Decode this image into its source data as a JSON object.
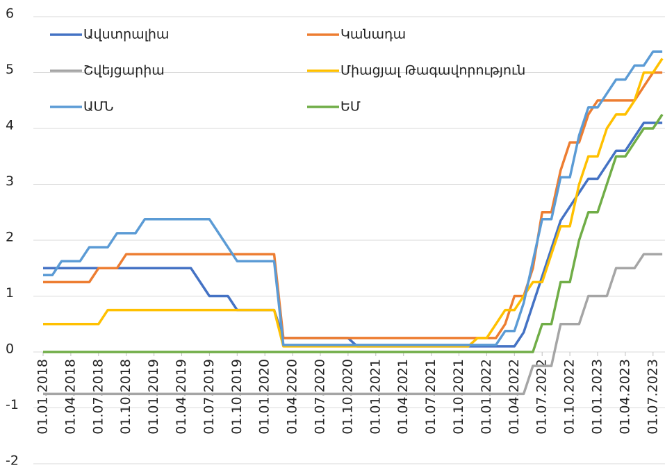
{
  "chart_data": {
    "type": "line",
    "categories": [
      "01.01.2018",
      null,
      null,
      "01.04.2018",
      null,
      null,
      "01.07.2018",
      null,
      null,
      "01.10.2018",
      null,
      null,
      "01.01.2019",
      null,
      null,
      "01.04.2019",
      null,
      null,
      "01.07.2019",
      null,
      null,
      "01.10.2019",
      null,
      null,
      "01.01.2020",
      null,
      null,
      "01.04.2020",
      null,
      null,
      "01.07.2020",
      null,
      null,
      "01.10.2020",
      null,
      null,
      "01.01.2021",
      null,
      null,
      "01.04.2021",
      null,
      null,
      "01.07.2021",
      null,
      null,
      "01.10.2021",
      null,
      null,
      "01.01.2022",
      null,
      null,
      "01.04.2022",
      null,
      null,
      "01.07.2022",
      null,
      null,
      "01.10.2022",
      null,
      null,
      "01.01.2023",
      null,
      null,
      "01.04.2023",
      null,
      null,
      "01.07.2023",
      null
    ],
    "series": [
      {
        "name": "Ավստրալիա",
        "color": "#4472c4",
        "values": [
          1.5,
          1.5,
          1.5,
          1.5,
          1.5,
          1.5,
          1.5,
          1.5,
          1.5,
          1.5,
          1.5,
          1.5,
          1.5,
          1.5,
          1.5,
          1.5,
          1.5,
          1.25,
          1,
          1,
          1,
          0.75,
          0.75,
          0.75,
          0.75,
          0.75,
          0.25,
          0.25,
          0.25,
          0.25,
          0.25,
          0.25,
          0.25,
          0.25,
          0.1,
          0.1,
          0.1,
          0.1,
          0.1,
          0.1,
          0.1,
          0.1,
          0.1,
          0.1,
          0.1,
          0.1,
          0.1,
          0.1,
          0.1,
          0.1,
          0.1,
          0.1,
          0.35,
          0.85,
          1.35,
          1.85,
          2.35,
          2.6,
          2.85,
          3.1,
          3.1,
          3.35,
          3.6,
          3.6,
          3.85,
          4.1,
          4.1,
          4.1
        ]
      },
      {
        "name": "Կանադա",
        "color": "#ed7d31",
        "values": [
          1.25,
          1.25,
          1.25,
          1.25,
          1.25,
          1.25,
          1.5,
          1.5,
          1.5,
          1.75,
          1.75,
          1.75,
          1.75,
          1.75,
          1.75,
          1.75,
          1.75,
          1.75,
          1.75,
          1.75,
          1.75,
          1.75,
          1.75,
          1.75,
          1.75,
          1.75,
          0.25,
          0.25,
          0.25,
          0.25,
          0.25,
          0.25,
          0.25,
          0.25,
          0.25,
          0.25,
          0.25,
          0.25,
          0.25,
          0.25,
          0.25,
          0.25,
          0.25,
          0.25,
          0.25,
          0.25,
          0.25,
          0.25,
          0.25,
          0.25,
          0.5,
          1,
          1,
          1.5,
          2.5,
          2.5,
          3.25,
          3.75,
          3.75,
          4.25,
          4.5,
          4.5,
          4.5,
          4.5,
          4.5,
          4.75,
          5,
          5
        ]
      },
      {
        "name": "Շվեյցարիա",
        "color": "#a5a5a5",
        "values": [
          -0.75,
          -0.75,
          -0.75,
          -0.75,
          -0.75,
          -0.75,
          -0.75,
          -0.75,
          -0.75,
          -0.75,
          -0.75,
          -0.75,
          -0.75,
          -0.75,
          -0.75,
          -0.75,
          -0.75,
          -0.75,
          -0.75,
          -0.75,
          -0.75,
          -0.75,
          -0.75,
          -0.75,
          -0.75,
          -0.75,
          -0.75,
          -0.75,
          -0.75,
          -0.75,
          -0.75,
          -0.75,
          -0.75,
          -0.75,
          -0.75,
          -0.75,
          -0.75,
          -0.75,
          -0.75,
          -0.75,
          -0.75,
          -0.75,
          -0.75,
          -0.75,
          -0.75,
          -0.75,
          -0.75,
          -0.75,
          -0.75,
          -0.75,
          -0.75,
          -0.75,
          -0.75,
          -0.25,
          -0.25,
          -0.25,
          0.5,
          0.5,
          0.5,
          1,
          1,
          1,
          1.5,
          1.5,
          1.5,
          1.75,
          1.75,
          1.75
        ]
      },
      {
        "name": "Միացյալ Թագավորություն",
        "color": "#ffc000",
        "values": [
          0.5,
          0.5,
          0.5,
          0.5,
          0.5,
          0.5,
          0.5,
          0.75,
          0.75,
          0.75,
          0.75,
          0.75,
          0.75,
          0.75,
          0.75,
          0.75,
          0.75,
          0.75,
          0.75,
          0.75,
          0.75,
          0.75,
          0.75,
          0.75,
          0.75,
          0.75,
          0.1,
          0.1,
          0.1,
          0.1,
          0.1,
          0.1,
          0.1,
          0.1,
          0.1,
          0.1,
          0.1,
          0.1,
          0.1,
          0.1,
          0.1,
          0.1,
          0.1,
          0.1,
          0.1,
          0.1,
          0.1,
          0.25,
          0.25,
          0.5,
          0.75,
          0.75,
          1,
          1.25,
          1.25,
          1.75,
          2.25,
          2.25,
          3,
          3.5,
          3.5,
          4,
          4.25,
          4.25,
          4.5,
          5,
          5,
          5.25
        ]
      },
      {
        "name": "ԱՄՆ",
        "color": "#5b9bd5",
        "values": [
          1.375,
          1.375,
          1.625,
          1.625,
          1.625,
          1.875,
          1.875,
          1.875,
          2.125,
          2.125,
          2.125,
          2.375,
          2.375,
          2.375,
          2.375,
          2.375,
          2.375,
          2.375,
          2.375,
          2.125,
          1.875,
          1.625,
          1.625,
          1.625,
          1.625,
          1.625,
          0.125,
          0.125,
          0.125,
          0.125,
          0.125,
          0.125,
          0.125,
          0.125,
          0.125,
          0.125,
          0.125,
          0.125,
          0.125,
          0.125,
          0.125,
          0.125,
          0.125,
          0.125,
          0.125,
          0.125,
          0.125,
          0.125,
          0.125,
          0.125,
          0.375,
          0.375,
          0.875,
          1.625,
          2.375,
          2.375,
          3.125,
          3.125,
          3.875,
          4.375,
          4.375,
          4.625,
          4.875,
          4.875,
          5.125,
          5.125,
          5.375,
          5.375
        ]
      },
      {
        "name": "ԵՄ",
        "color": "#70ad47",
        "values": [
          0,
          0,
          0,
          0,
          0,
          0,
          0,
          0,
          0,
          0,
          0,
          0,
          0,
          0,
          0,
          0,
          0,
          0,
          0,
          0,
          0,
          0,
          0,
          0,
          0,
          0,
          0,
          0,
          0,
          0,
          0,
          0,
          0,
          0,
          0,
          0,
          0,
          0,
          0,
          0,
          0,
          0,
          0,
          0,
          0,
          0,
          0,
          0,
          0,
          0,
          0,
          0,
          0,
          0,
          0.5,
          0.5,
          1.25,
          1.25,
          2,
          2.5,
          2.5,
          3,
          3.5,
          3.5,
          3.75,
          4,
          4,
          4.25
        ]
      }
    ],
    "ylim": [
      -2,
      6
    ],
    "yticks": [
      -2,
      -1,
      0,
      1,
      2,
      3,
      4,
      5,
      6
    ],
    "grid": true,
    "legend": "top-left"
  }
}
